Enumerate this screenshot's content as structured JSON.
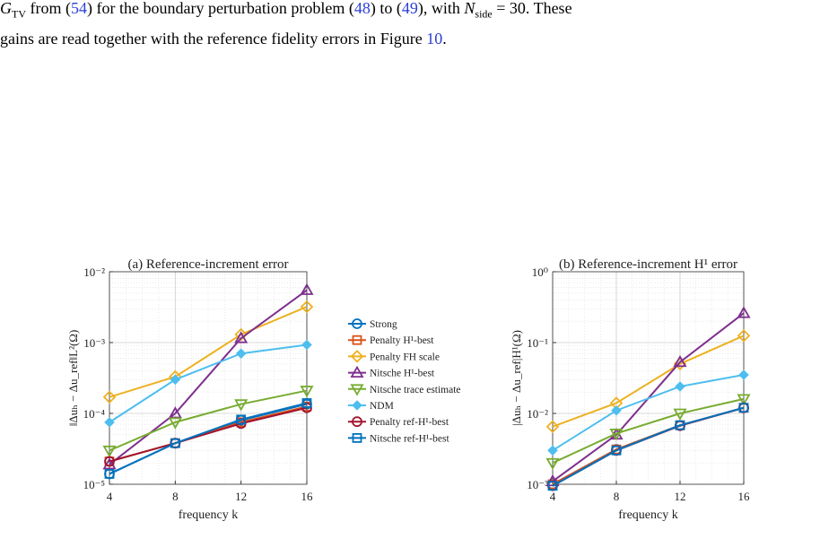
{
  "paragraph": {
    "lines": [
      [
        {
          "text": "G",
          "style": "math"
        },
        {
          "text": "TV",
          "style": "sub"
        },
        {
          "text": " from (",
          "style": "plain"
        },
        {
          "text": "54",
          "style": "link"
        },
        {
          "text": ") for the boundary perturbation problem (",
          "style": "plain"
        },
        {
          "text": "48",
          "style": "link"
        },
        {
          "text": ") to (",
          "style": "plain"
        },
        {
          "text": "49",
          "style": "link"
        },
        {
          "text": "), with ",
          "style": "plain"
        },
        {
          "text": "N",
          "style": "math"
        },
        {
          "text": "side",
          "style": "sub"
        },
        {
          "text": " = 30. These",
          "style": "plain"
        }
      ],
      [
        {
          "text": "gains are read together with the reference fidelity errors in Figure ",
          "style": "plain"
        },
        {
          "text": "10",
          "style": "link"
        },
        {
          "text": ".",
          "style": "plain"
        }
      ]
    ]
  },
  "chart_data": [
    {
      "type": "line",
      "title": "(a) Reference-increment error",
      "x_label": "frequency k",
      "y_label": "‖Δuₕ − Δu_ref‖L²(Ω)",
      "x": [
        4,
        8,
        12,
        16
      ],
      "xlim": [
        4,
        16
      ],
      "xticks": [
        4,
        8,
        12,
        16
      ],
      "ylim": [
        1e-05,
        0.01
      ],
      "log_y": true,
      "grid": true,
      "legend": "outside right",
      "yticks": [
        {
          "value": 1e-05,
          "label": "10⁻⁵"
        },
        {
          "value": 0.0001,
          "label": "10⁻⁴"
        },
        {
          "value": 0.001,
          "label": "10⁻³"
        },
        {
          "value": 0.01,
          "label": "10⁻²"
        }
      ],
      "series": [
        {
          "name": "Strong",
          "color": "#0072BD",
          "marker": "circle",
          "values": [
            1.4e-05,
            3.8e-05,
            8e-05,
            0.000135
          ]
        },
        {
          "name": "Penalty H¹-best",
          "color": "#D95319",
          "marker": "square",
          "values": [
            2.1e-05,
            3.8e-05,
            7.5e-05,
            0.000125
          ]
        },
        {
          "name": "Penalty FH scale",
          "color": "#EDB120",
          "marker": "diamond",
          "values": [
            0.00017,
            0.00033,
            0.0013,
            0.0032
          ]
        },
        {
          "name": "Nitsche H¹-best",
          "color": "#7E2F8E",
          "marker": "triangle-up",
          "values": [
            1.9e-05,
            0.0001,
            0.00115,
            0.0055
          ]
        },
        {
          "name": "Nitsche trace estimate",
          "color": "#77AC30",
          "marker": "triangle-down",
          "values": [
            3e-05,
            7.5e-05,
            0.000135,
            0.00021
          ]
        },
        {
          "name": "NDM",
          "color": "#4DBEEE",
          "marker": "filled-diamond",
          "values": [
            7.5e-05,
            0.0003,
            0.0007,
            0.00093
          ]
        },
        {
          "name": "Penalty ref-H¹-best",
          "color": "#A2142F",
          "marker": "circle",
          "values": [
            2.1e-05,
            3.8e-05,
            7.2e-05,
            0.00012
          ]
        },
        {
          "name": "Nitsche ref-H¹-best",
          "color": "#0072BD",
          "marker": "square",
          "values": [
            1.4e-05,
            3.8e-05,
            8.2e-05,
            0.00014
          ]
        }
      ]
    },
    {
      "type": "line",
      "title": "(b) Reference-increment H¹ error",
      "x_label": "frequency k",
      "y_label": "|Δuₕ − Δu_ref|H¹(Ω)",
      "x": [
        4,
        8,
        12,
        16
      ],
      "xlim": [
        4,
        16
      ],
      "xticks": [
        4,
        8,
        12,
        16
      ],
      "ylim": [
        0.001,
        1
      ],
      "log_y": true,
      "grid": true,
      "yticks": [
        {
          "value": 0.001,
          "label": "10⁻³"
        },
        {
          "value": 0.01,
          "label": "10⁻²"
        },
        {
          "value": 0.1,
          "label": "10⁻¹"
        },
        {
          "value": 1,
          "label": "10⁰"
        }
      ],
      "series": [
        {
          "color": "#0072BD",
          "marker": "circle",
          "values": [
            0.001,
            0.0031,
            0.0068,
            0.012
          ]
        },
        {
          "color": "#D95319",
          "marker": "square",
          "values": [
            0.001,
            0.0031,
            0.0068,
            0.012
          ]
        },
        {
          "color": "#EDB120",
          "marker": "diamond",
          "values": [
            0.0065,
            0.014,
            0.05,
            0.125
          ]
        },
        {
          "color": "#7E2F8E",
          "marker": "triangle-up",
          "values": [
            0.0011,
            0.005,
            0.053,
            0.26
          ]
        },
        {
          "color": "#77AC30",
          "marker": "triangle-down",
          "values": [
            0.002,
            0.0052,
            0.01,
            0.016
          ]
        },
        {
          "color": "#4DBEEE",
          "marker": "filled-diamond",
          "values": [
            0.003,
            0.011,
            0.024,
            0.035
          ]
        },
        {
          "color": "#A2142F",
          "marker": "circle",
          "values": [
            0.00095,
            0.003,
            0.0067,
            0.012
          ]
        },
        {
          "color": "#0072BD",
          "marker": "square",
          "values": [
            0.00095,
            0.003,
            0.0068,
            0.012
          ]
        }
      ]
    }
  ]
}
